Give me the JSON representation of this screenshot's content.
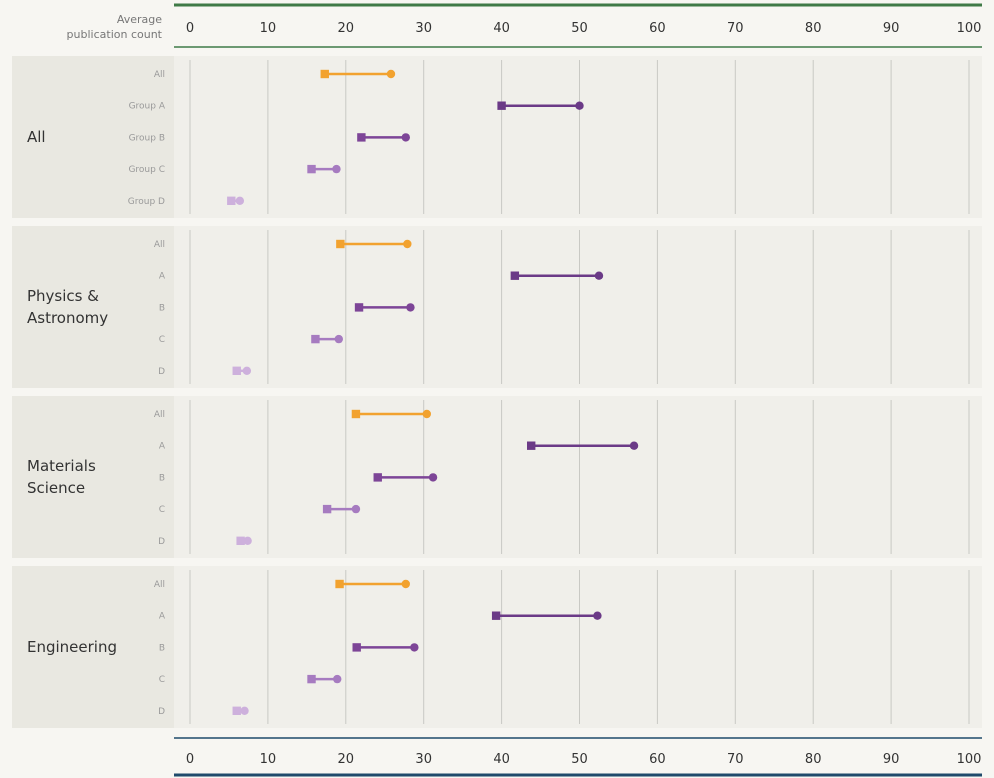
{
  "chart_data": {
    "type": "dumbbell",
    "axis_caption": [
      "Average",
      "publication count"
    ],
    "xlim": [
      0,
      100
    ],
    "ticks": [
      0,
      10,
      20,
      30,
      40,
      50,
      60,
      70,
      80,
      90,
      100
    ],
    "marker_legend": {
      "start": "square",
      "end": "circle"
    },
    "series_colors": {
      "all": "#f2a22f",
      "a": "#6b3a87",
      "b": "#7d4597",
      "c": "#a67bc0",
      "d": "#cdb0dc"
    },
    "groups": [
      {
        "label": [
          "All"
        ],
        "rows": [
          {
            "label": "All",
            "key": "all",
            "start": 17.3,
            "end": 25.8
          },
          {
            "label": "Group A",
            "key": "a",
            "start": 40.0,
            "end": 50.0
          },
          {
            "label": "Group B",
            "key": "b",
            "start": 22.0,
            "end": 27.7
          },
          {
            "label": "Group C",
            "key": "c",
            "start": 15.6,
            "end": 18.8
          },
          {
            "label": "Group D",
            "key": "d",
            "start": 5.3,
            "end": 6.4
          }
        ]
      },
      {
        "label": [
          "Physics &",
          "Astronomy"
        ],
        "rows": [
          {
            "label": "All",
            "key": "all",
            "start": 19.3,
            "end": 27.9
          },
          {
            "label": "A",
            "key": "a",
            "start": 41.7,
            "end": 52.5
          },
          {
            "label": "B",
            "key": "b",
            "start": 21.7,
            "end": 28.3
          },
          {
            "label": "C",
            "key": "c",
            "start": 16.1,
            "end": 19.1
          },
          {
            "label": "D",
            "key": "d",
            "start": 6.0,
            "end": 7.3
          }
        ]
      },
      {
        "label": [
          "Materials",
          "Science"
        ],
        "rows": [
          {
            "label": "All",
            "key": "all",
            "start": 21.3,
            "end": 30.4
          },
          {
            "label": "A",
            "key": "a",
            "start": 43.8,
            "end": 57.0
          },
          {
            "label": "B",
            "key": "b",
            "start": 24.1,
            "end": 31.2
          },
          {
            "label": "C",
            "key": "c",
            "start": 17.6,
            "end": 21.3
          },
          {
            "label": "D",
            "key": "d",
            "start": 6.5,
            "end": 7.4
          }
        ]
      },
      {
        "label": [
          "Engineering"
        ],
        "rows": [
          {
            "label": "All",
            "key": "all",
            "start": 19.2,
            "end": 27.7
          },
          {
            "label": "A",
            "key": "a",
            "start": 39.3,
            "end": 52.3
          },
          {
            "label": "B",
            "key": "b",
            "start": 21.4,
            "end": 28.8
          },
          {
            "label": "C",
            "key": "c",
            "start": 15.6,
            "end": 18.9
          },
          {
            "label": "D",
            "key": "d",
            "start": 6.0,
            "end": 7.0
          }
        ]
      }
    ]
  },
  "colors": {
    "top_axis_line": "#3f7a47",
    "bottom_axis_line": "#1f4a6b",
    "panel_bg": "#f0efea",
    "label_bg": "#e9e8e1",
    "gridline": "#c9c9c4"
  }
}
